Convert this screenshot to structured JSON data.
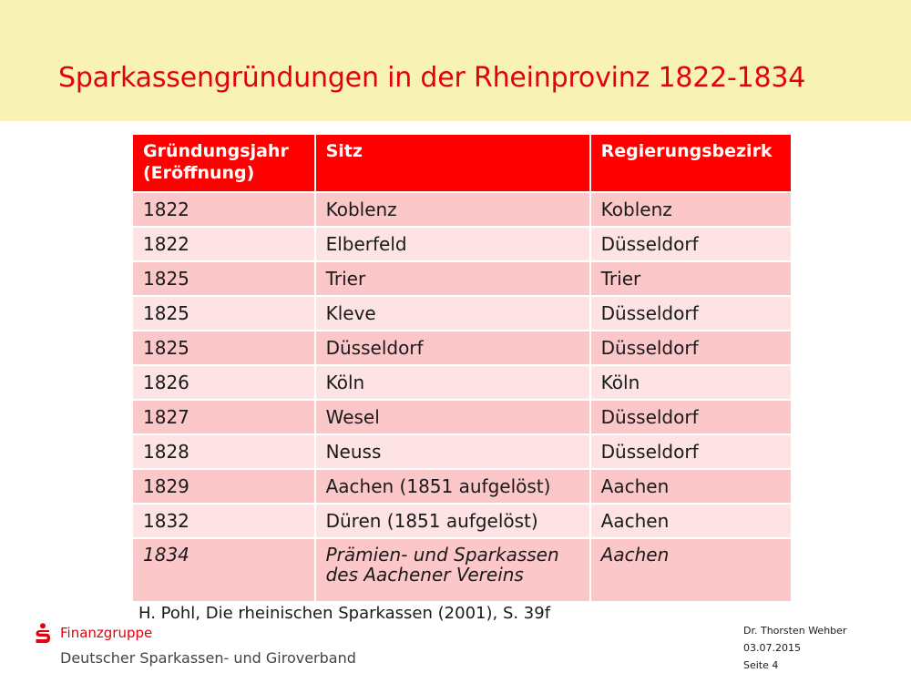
{
  "title": "Sparkassengründungen in der Rheinprovinz 1822-1834",
  "table": {
    "headers": {
      "col1_line1": "Gründungsjahr",
      "col1_line2": "(Eröffnung)",
      "col2": "Sitz",
      "col3": "Regierungsbezirk"
    },
    "rows": [
      {
        "year": "1822",
        "seat": "Koblenz",
        "district": "Koblenz"
      },
      {
        "year": "1822",
        "seat": "Elberfeld",
        "district": "Düsseldorf"
      },
      {
        "year": "1825",
        "seat": "Trier",
        "district": "Trier"
      },
      {
        "year": "1825",
        "seat": "Kleve",
        "district": "Düsseldorf"
      },
      {
        "year": "1825",
        "seat": "Düsseldorf",
        "district": "Düsseldorf"
      },
      {
        "year": "1826",
        "seat": "Köln",
        "district": "Köln"
      },
      {
        "year": "1827",
        "seat": "Wesel",
        "district": "Düsseldorf"
      },
      {
        "year": "1828",
        "seat": "Neuss",
        "district": "Düsseldorf"
      },
      {
        "year": "1829",
        "seat": "Aachen (1851 aufgelöst)",
        "district": "Aachen"
      },
      {
        "year": "1832",
        "seat": "Düren (1851 aufgelöst)",
        "district": "Aachen"
      }
    ],
    "last_row": {
      "year": "1834",
      "seat_line1": "Prämien- und Sparkassen",
      "seat_line2": "des Aachener Vereins",
      "district": "Aachen"
    }
  },
  "source": "H. Pohl, Die rheinischen Sparkassen (2001), S. 39f",
  "logo": {
    "icon": "sparkasse-s-icon",
    "name": "Finanzgruppe",
    "subtitle": "Deutscher Sparkassen- und Giroverband"
  },
  "footer": {
    "author": "Dr. Thorsten Wehber",
    "date": "03.07.2015",
    "page": "Seite 4"
  },
  "colors": {
    "accent": "#e3000f",
    "header_band": "#f8f3b4",
    "table_header": "#ff0000",
    "row_odd": "#fcc7c9",
    "row_even": "#fde3e4"
  }
}
